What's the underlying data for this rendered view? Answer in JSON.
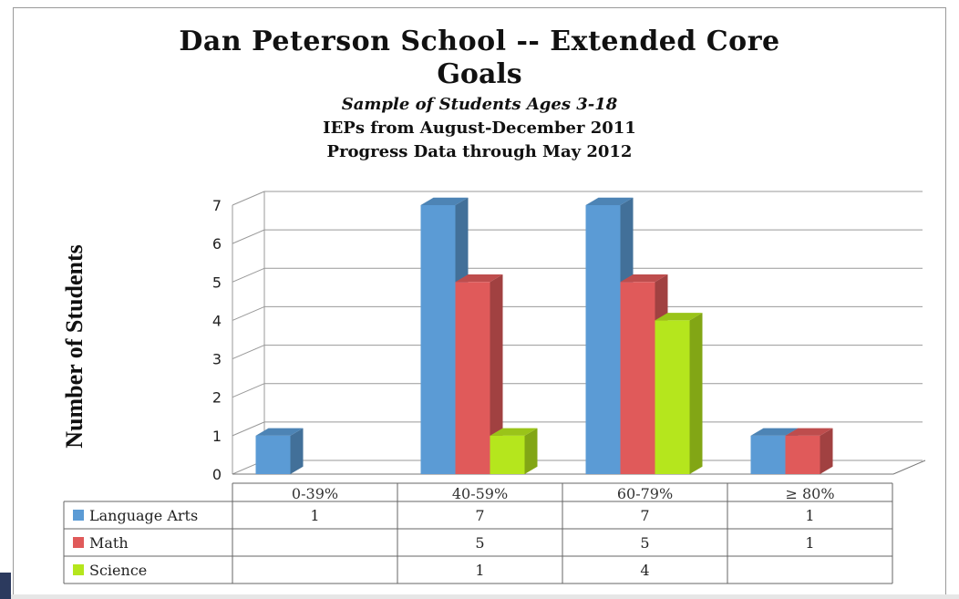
{
  "chart_data": {
    "type": "bar",
    "title": "Dan Peterson School -- Extended Core Goals",
    "title_line1": "Dan Peterson School -- Extended Core",
    "title_line2": "Goals",
    "subtitle": "Sample of Students Ages 3-18",
    "subtitle2": "IEPs from August-December 2011",
    "subtitle3": "Progress Data through May 2012",
    "ylabel": "Number of Students",
    "xlabel": "",
    "ylim": [
      0,
      7
    ],
    "yticks": [
      "0",
      "1",
      "2",
      "3",
      "4",
      "5",
      "6",
      "7"
    ],
    "categories": [
      "0-39%",
      "40-59%",
      "60-79%",
      "≥ 80%"
    ],
    "series": [
      {
        "name": "Language Arts",
        "values": [
          1,
          7,
          7,
          1
        ],
        "color": "#5b9bd5"
      },
      {
        "name": "Math",
        "values": [
          null,
          5,
          5,
          1
        ],
        "color": "#e05a5a"
      },
      {
        "name": "Science",
        "values": [
          null,
          1,
          4,
          null
        ],
        "color": "#b5e61d"
      }
    ],
    "grid": true,
    "legend": "data-table-below"
  }
}
